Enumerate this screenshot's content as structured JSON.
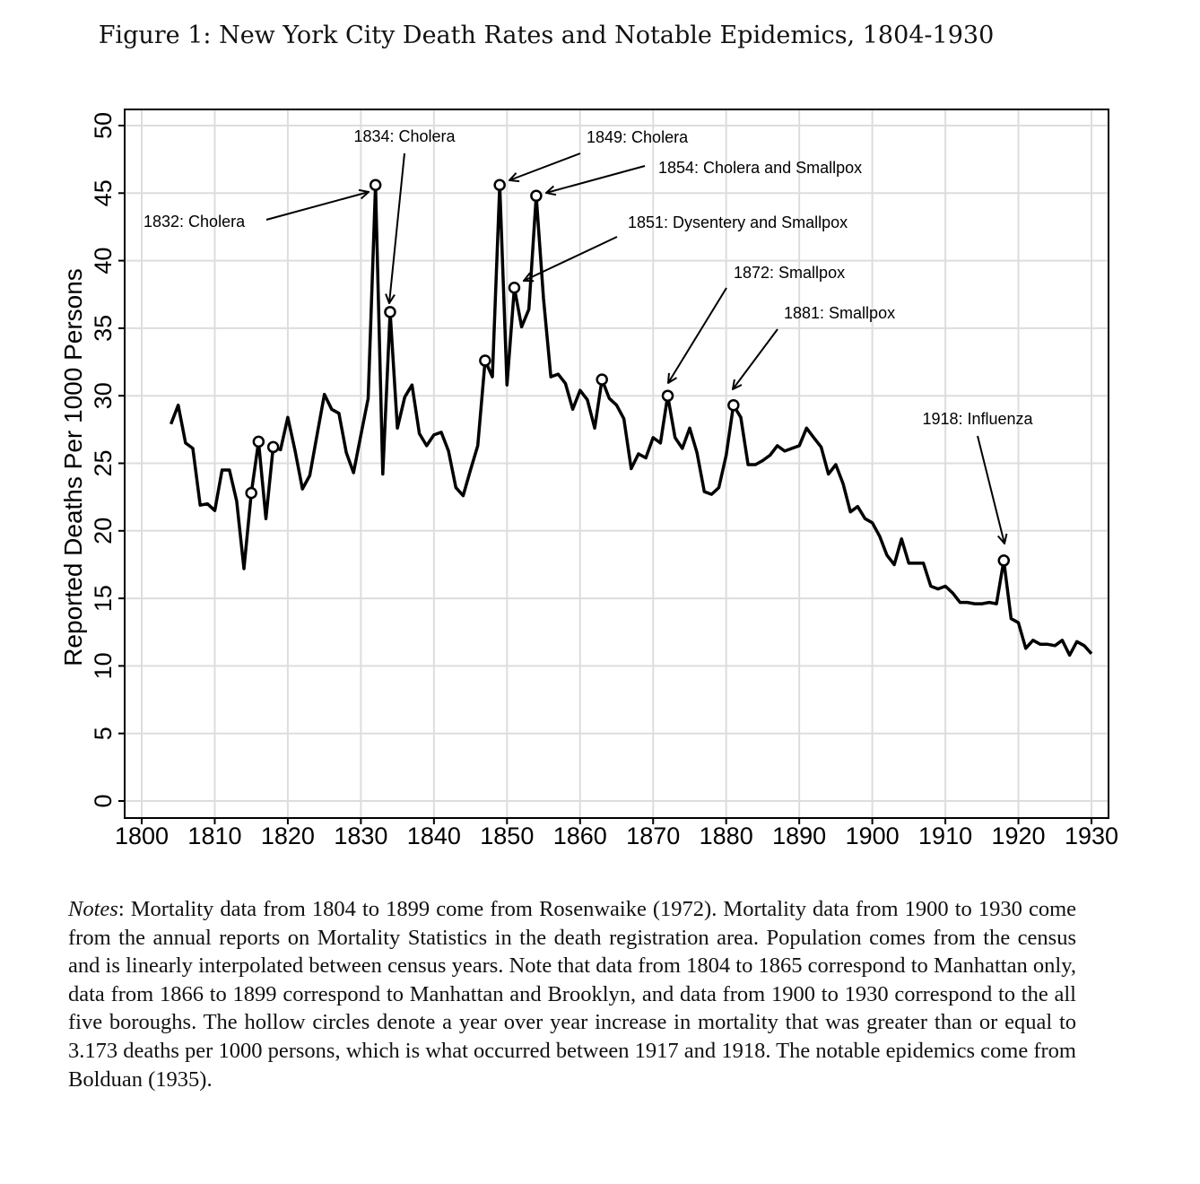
{
  "figure": {
    "title": "Figure 1: New York City Death Rates and Notable Epidemics, 1804-1930"
  },
  "chart_data": {
    "type": "line",
    "title": "",
    "xlabel": "",
    "ylabel": "Reported Deaths Per 1000 Persons",
    "xlim": [
      1800,
      1930
    ],
    "ylim": [
      0,
      50
    ],
    "x_ticks": [
      1800,
      1810,
      1820,
      1830,
      1840,
      1850,
      1860,
      1870,
      1880,
      1890,
      1900,
      1910,
      1920,
      1930
    ],
    "y_ticks": [
      0,
      5,
      10,
      15,
      20,
      25,
      30,
      35,
      40,
      45,
      50
    ],
    "grid": true,
    "line_color": "#000000",
    "grid_color": "#dddddd",
    "x": [
      1804,
      1805,
      1806,
      1807,
      1808,
      1809,
      1810,
      1811,
      1812,
      1813,
      1814,
      1815,
      1816,
      1817,
      1818,
      1819,
      1820,
      1821,
      1822,
      1823,
      1824,
      1825,
      1826,
      1827,
      1828,
      1829,
      1830,
      1831,
      1832,
      1833,
      1834,
      1835,
      1836,
      1837,
      1838,
      1839,
      1840,
      1841,
      1842,
      1843,
      1844,
      1845,
      1846,
      1847,
      1848,
      1849,
      1850,
      1851,
      1852,
      1853,
      1854,
      1855,
      1856,
      1857,
      1858,
      1859,
      1860,
      1861,
      1862,
      1863,
      1864,
      1865,
      1866,
      1867,
      1868,
      1869,
      1870,
      1871,
      1872,
      1873,
      1874,
      1875,
      1876,
      1877,
      1878,
      1879,
      1880,
      1881,
      1882,
      1883,
      1884,
      1885,
      1886,
      1887,
      1888,
      1889,
      1890,
      1891,
      1892,
      1893,
      1894,
      1895,
      1896,
      1897,
      1898,
      1899,
      1900,
      1901,
      1902,
      1903,
      1904,
      1905,
      1906,
      1907,
      1908,
      1909,
      1910,
      1911,
      1912,
      1913,
      1914,
      1915,
      1916,
      1917,
      1918,
      1919,
      1920,
      1921,
      1922,
      1923,
      1924,
      1925,
      1926,
      1927,
      1928,
      1929,
      1930
    ],
    "y": [
      27.9,
      29.3,
      26.5,
      26.1,
      21.9,
      22.0,
      21.5,
      24.5,
      24.5,
      22.2,
      17.2,
      22.8,
      26.6,
      20.9,
      26.2,
      26.0,
      28.4,
      25.9,
      23.1,
      24.1,
      27.1,
      30.1,
      29.0,
      28.7,
      25.8,
      24.3,
      27.1,
      29.8,
      45.6,
      24.2,
      36.2,
      27.6,
      29.9,
      30.8,
      27.2,
      26.3,
      27.1,
      27.3,
      25.9,
      23.2,
      22.6,
      24.5,
      26.3,
      32.6,
      31.4,
      45.6,
      30.8,
      38.0,
      35.1,
      36.4,
      44.8,
      37.2,
      31.4,
      31.6,
      30.9,
      29.0,
      30.4,
      29.7,
      27.6,
      31.2,
      29.8,
      29.3,
      28.3,
      24.6,
      25.7,
      25.4,
      26.9,
      26.5,
      30.0,
      26.9,
      26.1,
      27.6,
      25.8,
      22.9,
      22.7,
      23.2,
      25.6,
      29.3,
      28.4,
      24.9,
      24.9,
      25.2,
      25.6,
      26.3,
      25.9,
      26.1,
      26.3,
      27.6,
      26.9,
      26.2,
      24.2,
      24.9,
      23.5,
      21.4,
      21.8,
      20.9,
      20.6,
      19.6,
      18.2,
      17.5,
      19.4,
      17.6,
      17.6,
      17.6,
      15.9,
      15.7,
      15.9,
      15.4,
      14.7,
      14.7,
      14.6,
      14.6,
      14.7,
      14.6,
      17.8,
      13.5,
      13.2,
      11.3,
      11.9,
      11.6,
      11.6,
      11.5,
      11.9,
      10.8,
      11.8,
      11.5,
      10.9
    ],
    "highlighted_points": [
      {
        "x": 1815,
        "y": 22.8
      },
      {
        "x": 1816,
        "y": 26.6
      },
      {
        "x": 1818,
        "y": 26.2
      },
      {
        "x": 1832,
        "y": 45.6
      },
      {
        "x": 1834,
        "y": 36.2
      },
      {
        "x": 1847,
        "y": 32.6
      },
      {
        "x": 1849,
        "y": 45.6
      },
      {
        "x": 1851,
        "y": 38.0
      },
      {
        "x": 1854,
        "y": 44.8
      },
      {
        "x": 1863,
        "y": 31.2
      },
      {
        "x": 1872,
        "y": 30.0
      },
      {
        "x": 1881,
        "y": 29.3
      },
      {
        "x": 1918,
        "y": 17.8
      }
    ],
    "annotations": [
      {
        "text": "1832: Cholera",
        "point": {
          "x": 1832,
          "y": 45.6
        }
      },
      {
        "text": "1834: Cholera",
        "point": {
          "x": 1834,
          "y": 36.2
        }
      },
      {
        "text": "1849: Cholera",
        "point": {
          "x": 1849,
          "y": 45.6
        }
      },
      {
        "text": "1854: Cholera and Smallpox",
        "point": {
          "x": 1854,
          "y": 44.8
        }
      },
      {
        "text": "1851: Dysentery and Smallpox",
        "point": {
          "x": 1851,
          "y": 38.0
        }
      },
      {
        "text": "1872: Smallpox",
        "point": {
          "x": 1872,
          "y": 30.0
        }
      },
      {
        "text": "1881: Smallpox",
        "point": {
          "x": 1881,
          "y": 29.3
        }
      },
      {
        "text": "1918: Influenza",
        "point": {
          "x": 1918,
          "y": 17.8
        }
      }
    ]
  },
  "notes": {
    "label": "Notes",
    "text": ": Mortality data from 1804 to 1899 come from Rosenwaike (1972). Mortality data from 1900 to 1930 come from the annual reports on Mortality Statistics in the death registration area. Population comes from the census and is linearly interpolated between census years. Note that data from 1804 to 1865 correspond to Manhattan only, data from 1866 to 1899 correspond to Manhattan and Brooklyn, and data from 1900 to 1930 correspond to the all five boroughs. The hollow circles denote a year over year increase in mortality that was greater than or equal to 3.173 deaths per 1000 persons, which is what occurred between 1917 and 1918. The notable epidemics come from Bolduan (1935)."
  }
}
